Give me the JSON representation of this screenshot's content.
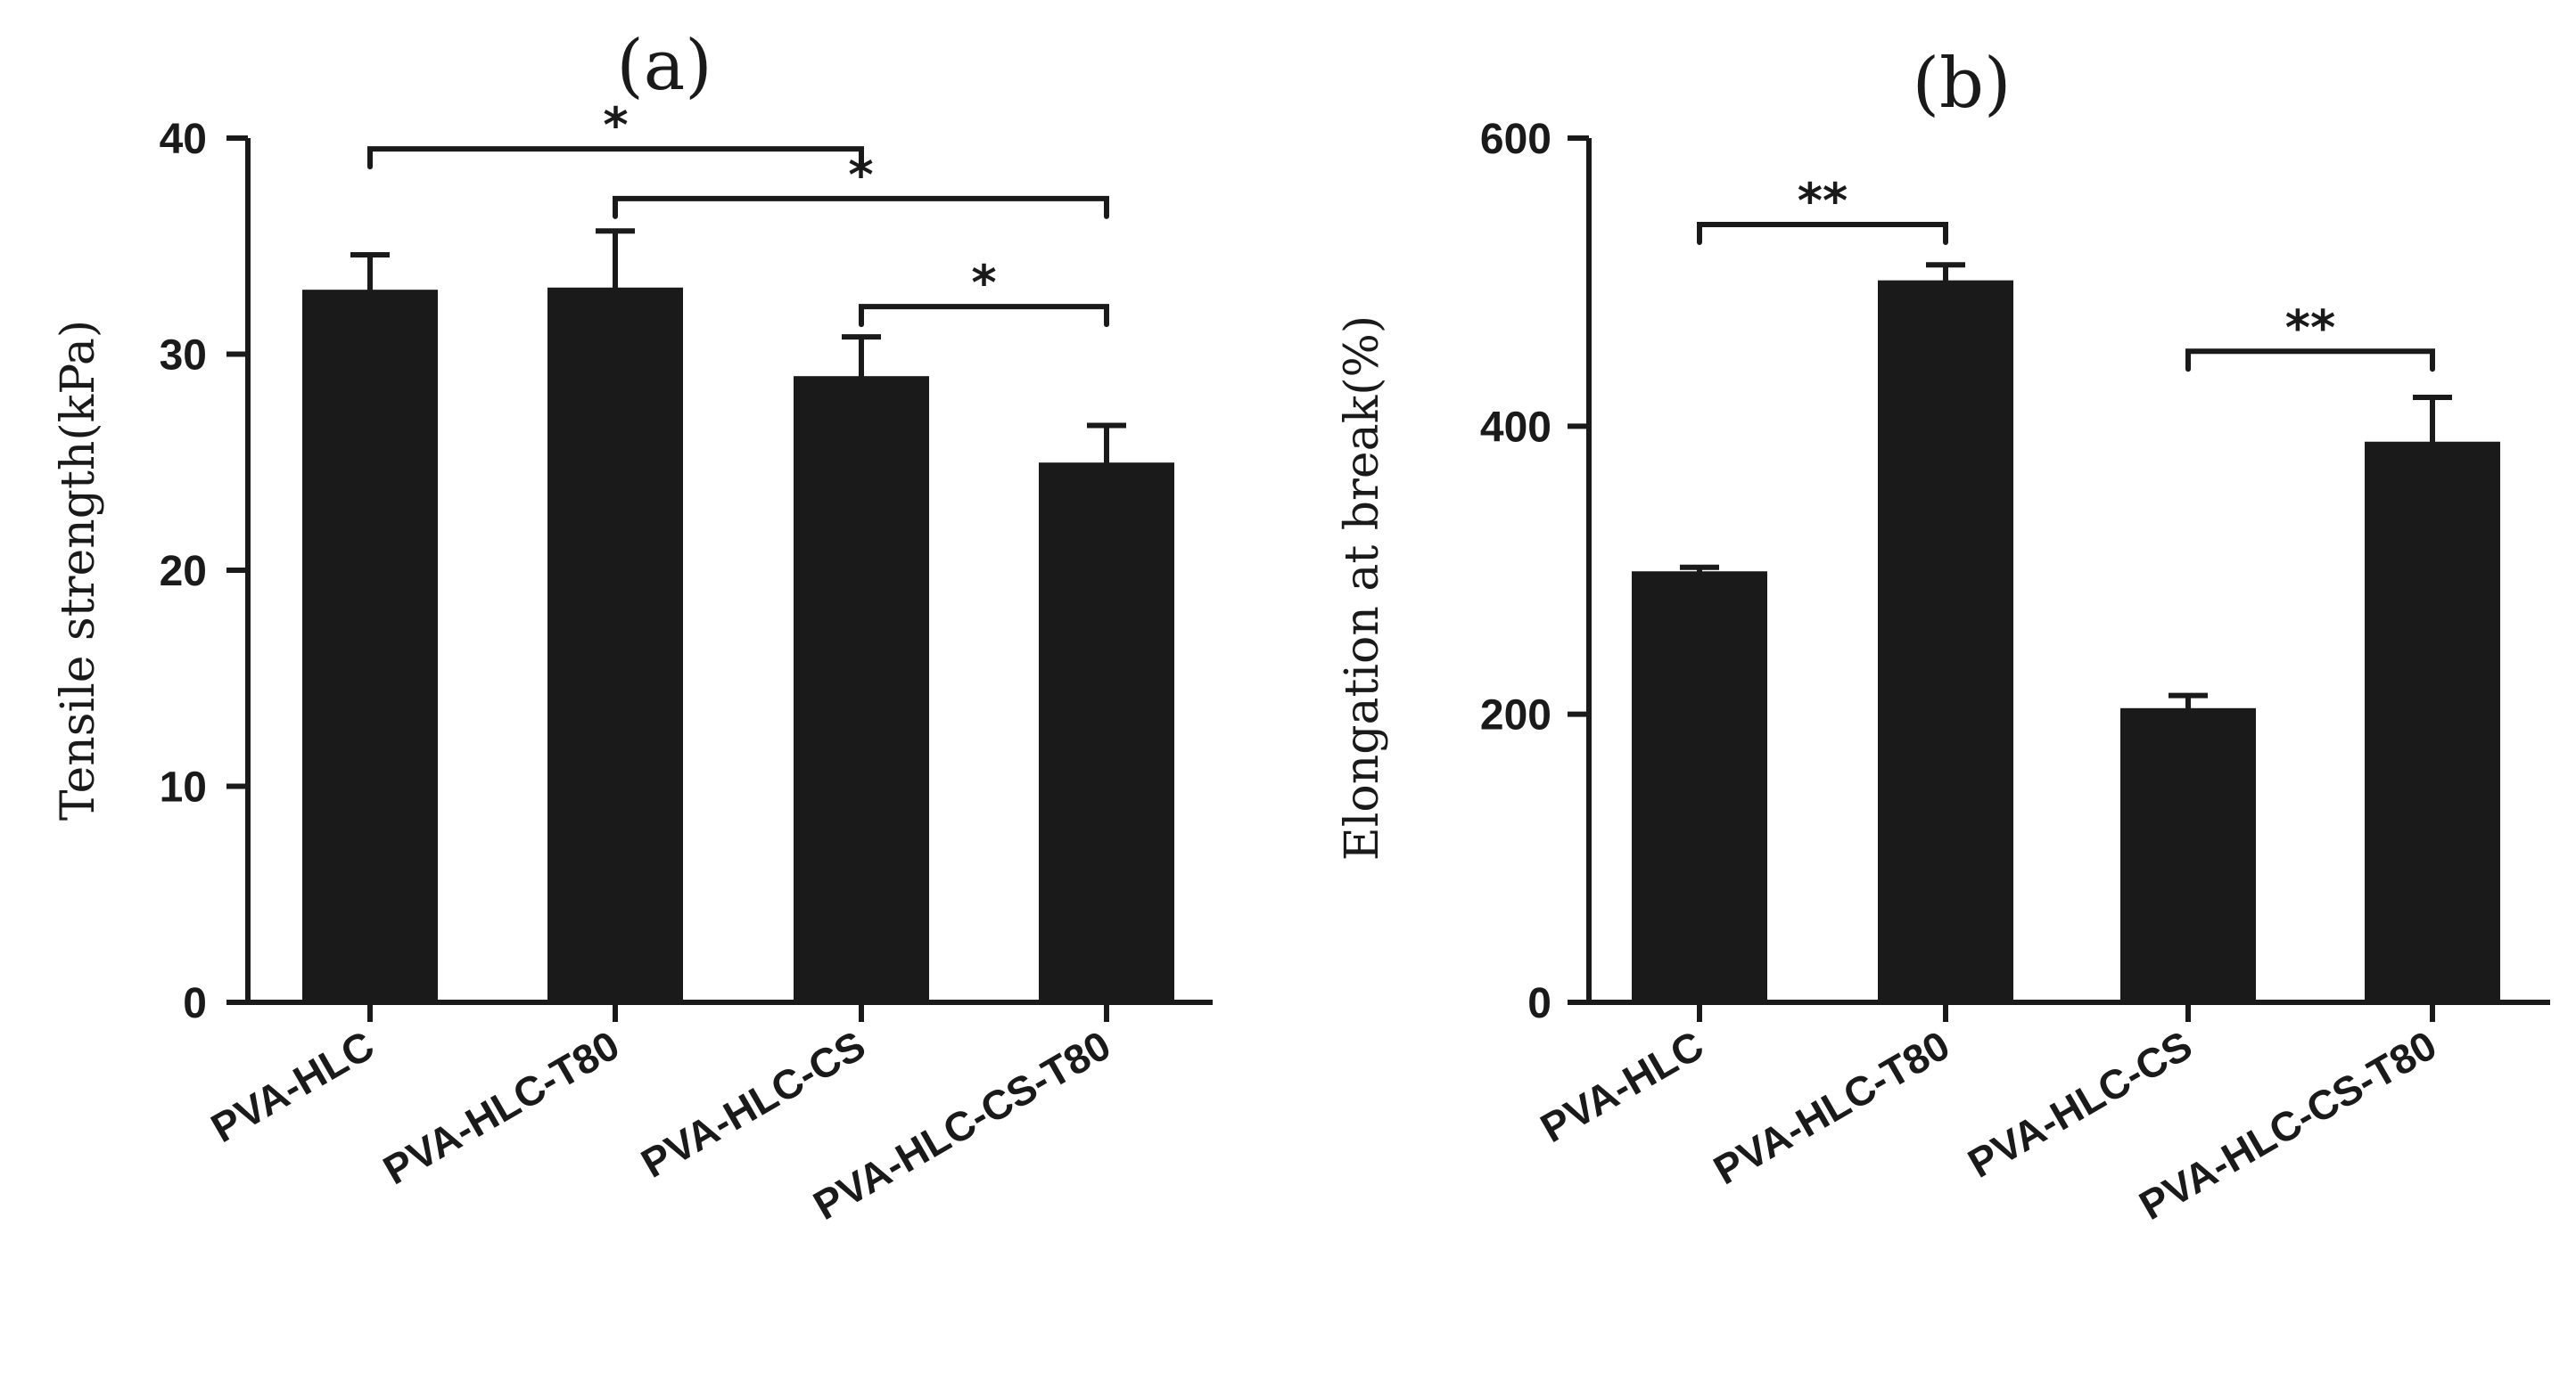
{
  "chart_data": [
    {
      "panel": "(a)",
      "type": "bar",
      "title": "(a)",
      "xlabel": "",
      "ylabel": "Tensile strength(kPa)",
      "ylim": [
        0,
        40
      ],
      "yticks": [
        0,
        10,
        20,
        30,
        40
      ],
      "categories": [
        "PVA-HLC",
        "PVA-HLC-T80",
        "PVA-HLC-CS",
        "PVA-HLC-CS-T80"
      ],
      "values": [
        32.9,
        33.0,
        28.9,
        24.9
      ],
      "errors": [
        1.7,
        2.7,
        1.9,
        1.8
      ],
      "bar_color": "#1a1a1a",
      "significance": [
        {
          "from": 0,
          "to": 2,
          "label": "*",
          "y": 39.5
        },
        {
          "from": 1,
          "to": 3,
          "label": "*",
          "y": 37.2
        },
        {
          "from": 2,
          "to": 3,
          "label": "*",
          "y": 32.2
        }
      ]
    },
    {
      "panel": "(b)",
      "type": "bar",
      "title": "(b)",
      "xlabel": "",
      "ylabel": "Elongation at break(%)",
      "ylim": [
        0,
        600
      ],
      "yticks": [
        0,
        200,
        400,
        600
      ],
      "categories": [
        "PVA-HLC",
        "PVA-HLC-T80",
        "PVA-HLC-CS",
        "PVA-HLC-CS-T80"
      ],
      "values": [
        298,
        500,
        203,
        388
      ],
      "errors": [
        4,
        12,
        10,
        32
      ],
      "bar_color": "#1a1a1a",
      "significance": [
        {
          "from": 0,
          "to": 1,
          "label": "**",
          "y": 540
        },
        {
          "from": 2,
          "to": 3,
          "label": "**",
          "y": 452
        }
      ]
    }
  ]
}
